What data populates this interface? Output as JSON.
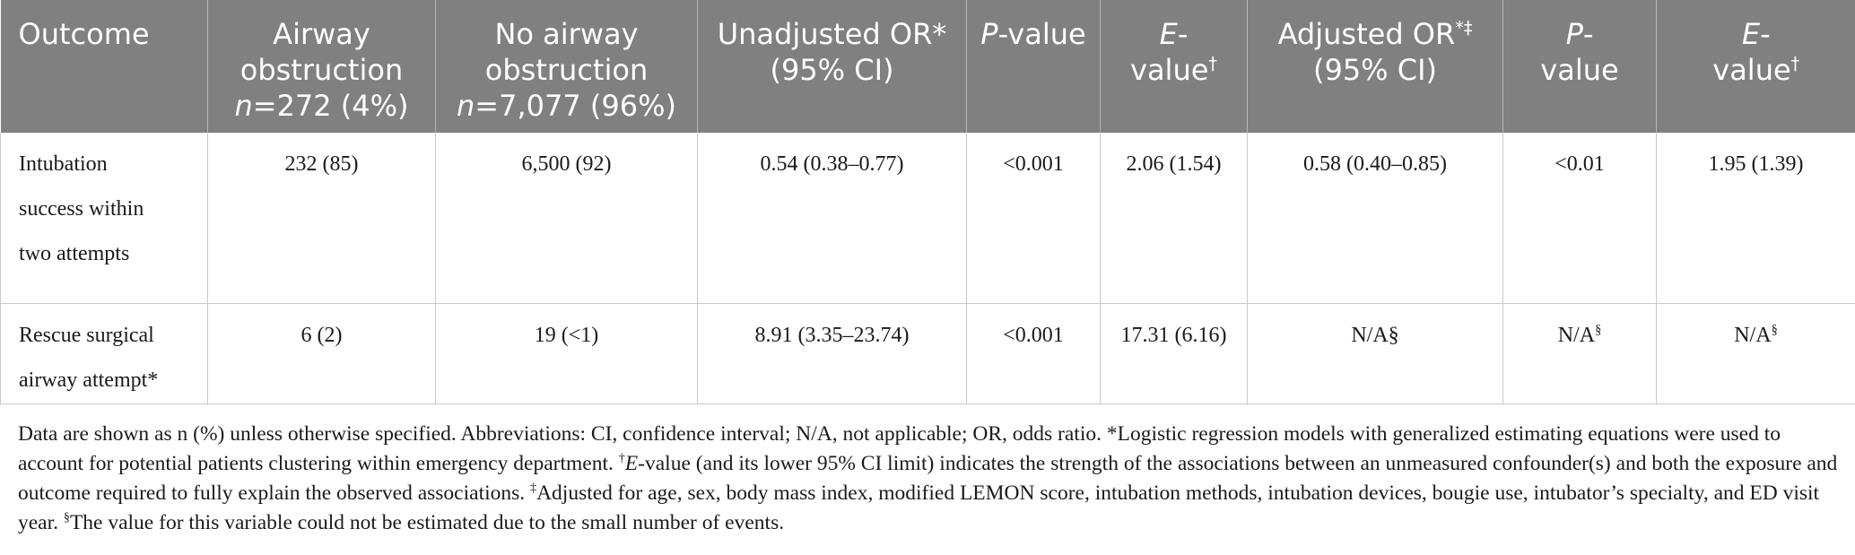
{
  "table": {
    "headers": [
      {
        "text": "Outcome"
      },
      {
        "line1": "Airway",
        "line2": "obstruction",
        "n_label": "n",
        "n_value": "=272 (4%)"
      },
      {
        "line1": "No airway",
        "line2": "obstruction",
        "n_label": "n",
        "n_value": "=7,077 (96%)"
      },
      {
        "line1": "Unadjusted OR",
        "mark": "*",
        "line2": "(95% CI)"
      },
      {
        "italic": "P",
        "rest": "-value"
      },
      {
        "italic": "E",
        "rest1": "-",
        "rest2": "value",
        "mark": "†"
      },
      {
        "line1": "Adjusted OR",
        "mark": "*‡",
        "line2": "(95% CI)"
      },
      {
        "italic": "P",
        "rest1": "-",
        "rest2": "value"
      },
      {
        "italic": "E",
        "rest1": "-",
        "rest2": "value",
        "mark": "†"
      }
    ],
    "rows": [
      {
        "outcome_line1": "Intubation",
        "outcome_line2": "success within",
        "outcome_line3": "two attempts",
        "airway": "232 (85)",
        "no_airway": "6,500 (92)",
        "unadj_or": "0.54 (0.38–0.77)",
        "p1": "<0.001",
        "e1": "2.06 (1.54)",
        "adj_or": "0.58 (0.40–0.85)",
        "p2": "<0.01",
        "e2": "1.95 (1.39)"
      },
      {
        "outcome_line1": "Rescue surgical",
        "outcome_line2": "airway attempt*",
        "airway": "6 (2)",
        "no_airway": "19 (<1)",
        "unadj_or": "8.91 (3.35–23.74)",
        "p1": "<0.001",
        "e1": "17.31 (6.16)",
        "adj_or": "N/A§",
        "p2": "N/A",
        "p2_mark": "§",
        "e2": "N/A",
        "e2_mark": "§"
      }
    ]
  },
  "footnote": {
    "part1": "Data are shown as n (%) unless otherwise specified. Abbreviations: CI, confidence interval; N/A, not applicable; OR, odds ratio. *Logistic regression models with generalized estimating equations were used to account for potential patients clustering within emergency department. ",
    "dagger": "†",
    "e_italic": "E",
    "part2": "-value (and its lower 95% CI limit) indicates the strength of the associations between an unmeasured confounder(s) and both the exposure and outcome required to fully explain the observed associations. ",
    "ddagger": "‡",
    "part3": "Adjusted for age, sex, body mass index, modified LEMON score, intubation methods, intubation devices, bougie use, intubator’s specialty, and ED visit year. ",
    "section": "§",
    "part4": "The value for this variable could not be estimated due to the small number of events."
  }
}
